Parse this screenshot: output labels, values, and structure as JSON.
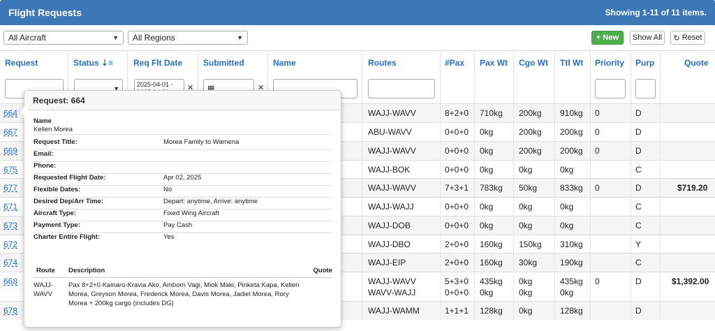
{
  "header": {
    "title": "Flight Requests",
    "count": "Showing 1-11 of 11 items."
  },
  "filters": {
    "aircraft": "All Aircraft",
    "regions": "All Regions",
    "new_label": "New",
    "show_all_label": "Show All",
    "reset_label": "Reset",
    "date_range": "2025-04-01 - 2025-04-30"
  },
  "columns": {
    "request": "Request",
    "status": "Status",
    "req_flt_date": "Req Flt Date",
    "submitted": "Submitted",
    "name": "Name",
    "routes": "Routes",
    "pax": "#Pax",
    "pax_wt": "Pax Wt",
    "cgo_wt": "Cgo Wt",
    "ttl_wt": "Ttl Wt",
    "priority": "Priority",
    "purp": "Purp",
    "quote": "Quote"
  },
  "rows": [
    {
      "request": "664",
      "routes": "WAJJ-WAVV",
      "pax": "8+2+0",
      "pax_wt": "710kg",
      "cgo_wt": "200kg",
      "ttl_wt": "910kg",
      "priority": "0",
      "purp": "D",
      "quote": ""
    },
    {
      "request": "667",
      "routes": "ABU-WAVV",
      "pax": "0+0+0",
      "pax_wt": "0kg",
      "cgo_wt": "200kg",
      "ttl_wt": "200kg",
      "priority": "0",
      "purp": "D",
      "quote": ""
    },
    {
      "request": "669",
      "routes": "WAJJ-WAVV",
      "pax": "0+0+0",
      "pax_wt": "0kg",
      "cgo_wt": "200kg",
      "ttl_wt": "200kg",
      "priority": "0",
      "purp": "D",
      "quote": ""
    },
    {
      "request": "675",
      "routes": "WAJJ-BOK",
      "pax": "0+0+0",
      "pax_wt": "0kg",
      "cgo_wt": "0kg",
      "ttl_wt": "0kg",
      "priority": "",
      "purp": "C",
      "quote": ""
    },
    {
      "request": "677",
      "routes": "WAJJ-WAVV",
      "pax": "7+3+1",
      "pax_wt": "783kg",
      "cgo_wt": "50kg",
      "ttl_wt": "833kg",
      "priority": "0",
      "purp": "D",
      "quote": "$719.20"
    },
    {
      "request": "671",
      "routes": "WAJJ-WAJJ",
      "pax": "0+0+0",
      "pax_wt": "0kg",
      "cgo_wt": "0kg",
      "ttl_wt": "0kg",
      "priority": "",
      "purp": "C",
      "quote": ""
    },
    {
      "request": "673",
      "routes": "WAJJ-DOB",
      "pax": "0+0+0",
      "pax_wt": "0kg",
      "cgo_wt": "0kg",
      "ttl_wt": "0kg",
      "priority": "",
      "purp": "C",
      "quote": ""
    },
    {
      "request": "672",
      "routes": "WAJJ-DBO",
      "pax": "2+0+0",
      "pax_wt": "160kg",
      "cgo_wt": "150kg",
      "ttl_wt": "310kg",
      "priority": "",
      "purp": "Y",
      "quote": ""
    },
    {
      "request": "674",
      "routes": "WAJJ-EIP",
      "pax": "2+0+0",
      "pax_wt": "160kg",
      "cgo_wt": "30kg",
      "ttl_wt": "190kg",
      "priority": "",
      "purp": "C",
      "quote": ""
    },
    {
      "request": "668",
      "routes": "WAJJ-WAVV",
      "routes2": "WAVV-WAJJ",
      "pax": "5+3+0",
      "pax2": "0+0+0",
      "pax_wt": "435kg",
      "pax_wt2": "0kg",
      "cgo_wt": "0kg",
      "cgo_wt2": "0kg",
      "ttl_wt": "435kg",
      "ttl_wt2": "0kg",
      "priority": "0",
      "purp": "D",
      "quote": "$1,392.00"
    },
    {
      "request": "678",
      "routes": "WAJJ-WAMM",
      "pax": "1+1+1",
      "pax_wt": "128kg",
      "cgo_wt": "0kg",
      "ttl_wt": "128kg",
      "priority": "",
      "purp": "D",
      "quote": ""
    }
  ],
  "popover": {
    "title": "Request: 664",
    "name_label": "Name",
    "name_value": "Kellen Morea",
    "fields": [
      {
        "label": "Request Title:",
        "value": "Morea Family to Wamena"
      },
      {
        "label": "Email:",
        "value": ""
      },
      {
        "label": "Phone:",
        "value": ""
      },
      {
        "label": "Requested Flight Date:",
        "value": "Apr 02, 2025"
      },
      {
        "label": "Flexible Dates:",
        "value": "No"
      },
      {
        "label": "Desired Dep/Arr Time:",
        "value": "Depart: anytime, Arrive: anytime"
      },
      {
        "label": "Aircraft Type:",
        "value": "Fixed Wing Aircraft"
      },
      {
        "label": "Payment Type:",
        "value": "Pay Cash"
      },
      {
        "label": "Charter Entire Flight:",
        "value": "Yes"
      }
    ],
    "routes_table": {
      "route_header": "Route",
      "desc_header": "Description",
      "quote_header": "Quote",
      "route_line1": "WAJJ-",
      "route_line2": "WAVV",
      "description": "Pax 8+2+0 Kainaro-Kravia Ako, Amborn Vagi, Miok Maki, Pinketa Kapa, Kellen Morea, Greyson Morea, Frederick Morea, Davis Morea, Jadiel Morea, Rory Morea + 200kg cargo (includes DG)",
      "quote": ""
    }
  }
}
